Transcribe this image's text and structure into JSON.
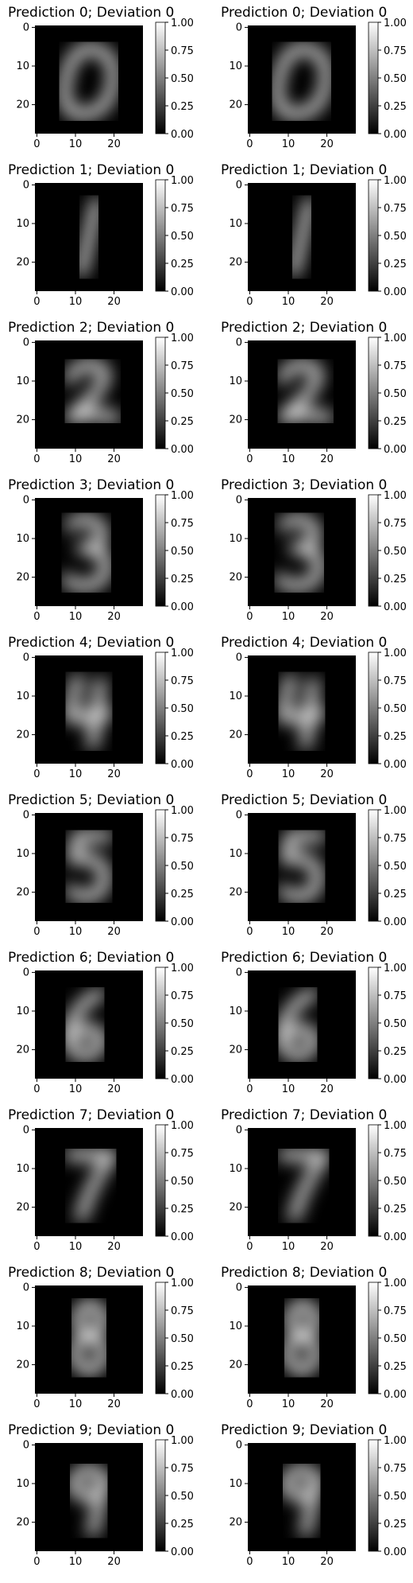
{
  "figure": {
    "panels": [
      {
        "title": "Prediction 0; Deviation 0",
        "digit": "0"
      },
      {
        "title": "Prediction 0; Deviation 0",
        "digit": "0"
      },
      {
        "title": "Prediction 1; Deviation 0",
        "digit": "1"
      },
      {
        "title": "Prediction 1; Deviation 0",
        "digit": "1"
      },
      {
        "title": "Prediction 2; Deviation 0",
        "digit": "2"
      },
      {
        "title": "Prediction 2; Deviation 0",
        "digit": "2"
      },
      {
        "title": "Prediction 3; Deviation 0",
        "digit": "3"
      },
      {
        "title": "Prediction 3; Deviation 0",
        "digit": "3"
      },
      {
        "title": "Prediction 4; Deviation 0",
        "digit": "4"
      },
      {
        "title": "Prediction 4; Deviation 0",
        "digit": "4"
      },
      {
        "title": "Prediction 5; Deviation 0",
        "digit": "5"
      },
      {
        "title": "Prediction 5; Deviation 0",
        "digit": "5"
      },
      {
        "title": "Prediction 6; Deviation 0",
        "digit": "6"
      },
      {
        "title": "Prediction 6; Deviation 0",
        "digit": "6"
      },
      {
        "title": "Prediction 7; Deviation 0",
        "digit": "7"
      },
      {
        "title": "Prediction 7; Deviation 0",
        "digit": "7"
      },
      {
        "title": "Prediction 8; Deviation 0",
        "digit": "8"
      },
      {
        "title": "Prediction 8; Deviation 0",
        "digit": "8"
      },
      {
        "title": "Prediction 9; Deviation 0",
        "digit": "9"
      },
      {
        "title": "Prediction 9; Deviation 0",
        "digit": "9"
      }
    ],
    "x_ticks": [
      "0",
      "10",
      "20"
    ],
    "y_ticks": [
      "0",
      "10",
      "20"
    ],
    "colorbar_ticks": [
      "1.00",
      "0.75",
      "0.50",
      "0.25",
      "0.00"
    ],
    "colors": {
      "image_background": "#000000",
      "digit_stroke": "#f2f2f2",
      "colorbar_top": "#ffffff",
      "colorbar_bottom": "#000000"
    }
  }
}
